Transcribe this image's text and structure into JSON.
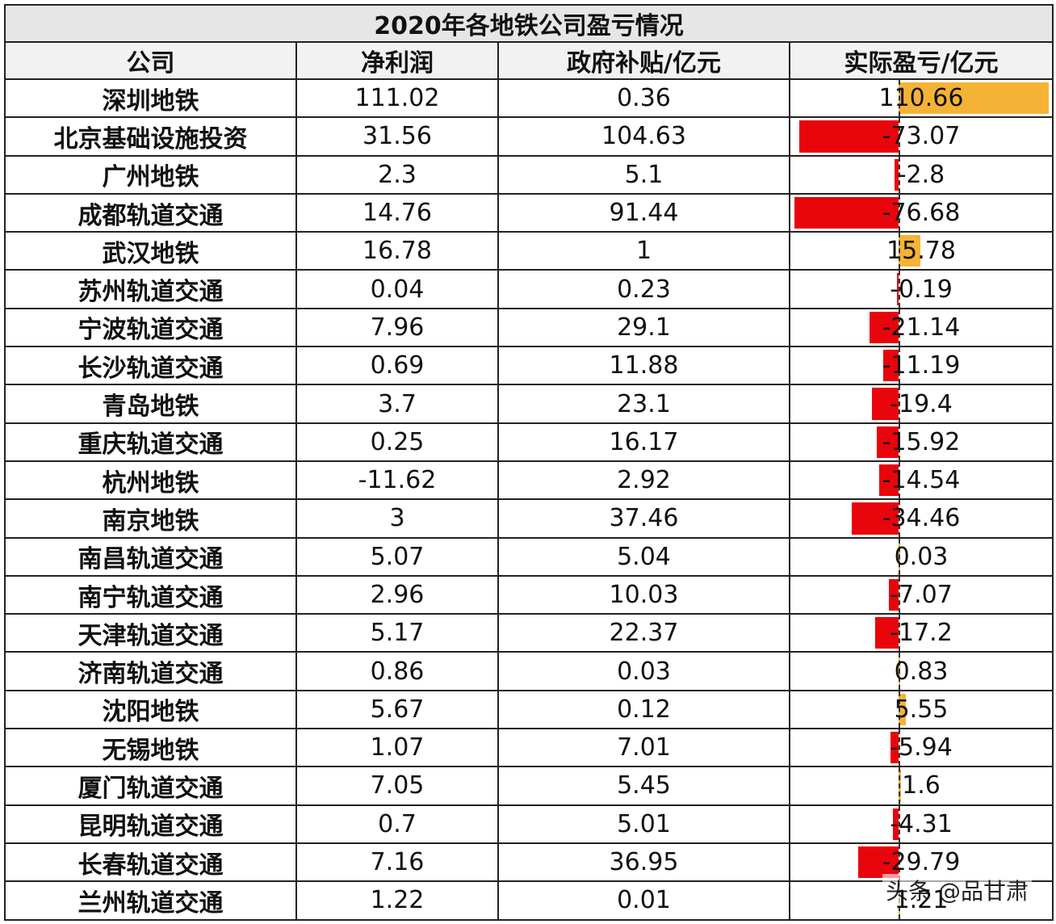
{
  "chart_data": {
    "type": "table",
    "title": "2020年各地铁公司盈亏情况",
    "columns": [
      "公司",
      "净利润",
      "政府补贴/亿元",
      "实际盈亏/亿元"
    ],
    "rows": [
      {
        "company": "深圳地铁",
        "net_profit": "111.02",
        "subsidy": "0.36",
        "actual": "110.66",
        "actual_value": 110.66
      },
      {
        "company": "北京基础设施投资",
        "net_profit": "31.56",
        "subsidy": "104.63",
        "actual": "-73.07",
        "actual_value": -73.07
      },
      {
        "company": "广州地铁",
        "net_profit": "2.3",
        "subsidy": "5.1",
        "actual": "-2.8",
        "actual_value": -2.8
      },
      {
        "company": "成都轨道交通",
        "net_profit": "14.76",
        "subsidy": "91.44",
        "actual": "-76.68",
        "actual_value": -76.68
      },
      {
        "company": "武汉地铁",
        "net_profit": "16.78",
        "subsidy": "1",
        "actual": "15.78",
        "actual_value": 15.78
      },
      {
        "company": "苏州轨道交通",
        "net_profit": "0.04",
        "subsidy": "0.23",
        "actual": "-0.19",
        "actual_value": -0.19
      },
      {
        "company": "宁波轨道交通",
        "net_profit": "7.96",
        "subsidy": "29.1",
        "actual": "-21.14",
        "actual_value": -21.14
      },
      {
        "company": "长沙轨道交通",
        "net_profit": "0.69",
        "subsidy": "11.88",
        "actual": "-11.19",
        "actual_value": -11.19
      },
      {
        "company": "青岛地铁",
        "net_profit": "3.7",
        "subsidy": "23.1",
        "actual": "-19.4",
        "actual_value": -19.4
      },
      {
        "company": "重庆轨道交通",
        "net_profit": "0.25",
        "subsidy": "16.17",
        "actual": "-15.92",
        "actual_value": -15.92
      },
      {
        "company": "杭州地铁",
        "net_profit": "-11.62",
        "subsidy": "2.92",
        "actual": "-14.54",
        "actual_value": -14.54
      },
      {
        "company": "南京地铁",
        "net_profit": "3",
        "subsidy": "37.46",
        "actual": "-34.46",
        "actual_value": -34.46
      },
      {
        "company": "南昌轨道交通",
        "net_profit": "5.07",
        "subsidy": "5.04",
        "actual": "0.03",
        "actual_value": 0.03
      },
      {
        "company": "南宁轨道交通",
        "net_profit": "2.96",
        "subsidy": "10.03",
        "actual": "-7.07",
        "actual_value": -7.07
      },
      {
        "company": "天津轨道交通",
        "net_profit": "5.17",
        "subsidy": "22.37",
        "actual": "-17.2",
        "actual_value": -17.2
      },
      {
        "company": "济南轨道交通",
        "net_profit": "0.86",
        "subsidy": "0.03",
        "actual": "0.83",
        "actual_value": 0.83
      },
      {
        "company": "沈阳地铁",
        "net_profit": "5.67",
        "subsidy": "0.12",
        "actual": "5.55",
        "actual_value": 5.55
      },
      {
        "company": "无锡地铁",
        "net_profit": "1.07",
        "subsidy": "7.01",
        "actual": "-5.94",
        "actual_value": -5.94
      },
      {
        "company": "厦门轨道交通",
        "net_profit": "7.05",
        "subsidy": "5.45",
        "actual": "1.6",
        "actual_value": 1.6
      },
      {
        "company": "昆明轨道交通",
        "net_profit": "0.7",
        "subsidy": "5.01",
        "actual": "-4.31",
        "actual_value": -4.31
      },
      {
        "company": "长春轨道交通",
        "net_profit": "7.16",
        "subsidy": "36.95",
        "actual": "-29.79",
        "actual_value": -29.79
      },
      {
        "company": "兰州轨道交通",
        "net_profit": "1.22",
        "subsidy": "0.01",
        "actual": "1.21",
        "actual_value": 1.21
      }
    ],
    "data_bar_colors": {
      "positive": "#f5b335",
      "negative": "#e8050b"
    }
  },
  "watermark": "头条 @品甘肃"
}
